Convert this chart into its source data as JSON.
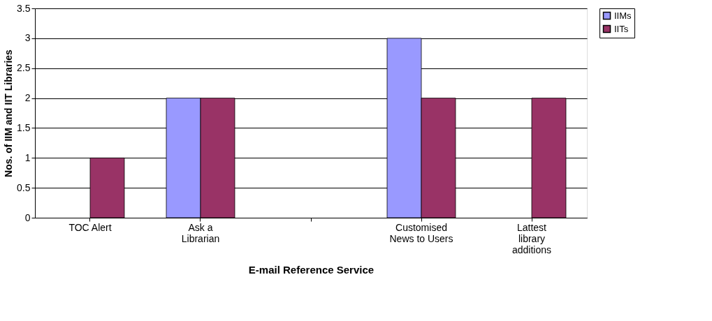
{
  "chart_data": {
    "type": "bar",
    "xlabel": "E-mail Reference Service",
    "ylabel": "Nos. of IIM and IIT Libraries",
    "categories": [
      "TOC Alert",
      "Ask a Librarian",
      null,
      "Customised News to Users",
      "Lattest library additions"
    ],
    "series": [
      {
        "name": "IIMs",
        "color": "#9999ff",
        "values": [
          0,
          2,
          0,
          3,
          0
        ]
      },
      {
        "name": "IITs",
        "color": "#993366",
        "values": [
          1,
          2,
          0,
          2,
          2
        ]
      }
    ],
    "ylim": [
      0,
      3.5
    ],
    "yticks": [
      0,
      0.5,
      1,
      1.5,
      2,
      2.5,
      3,
      3.5
    ],
    "grid": "y",
    "legend": "right"
  }
}
